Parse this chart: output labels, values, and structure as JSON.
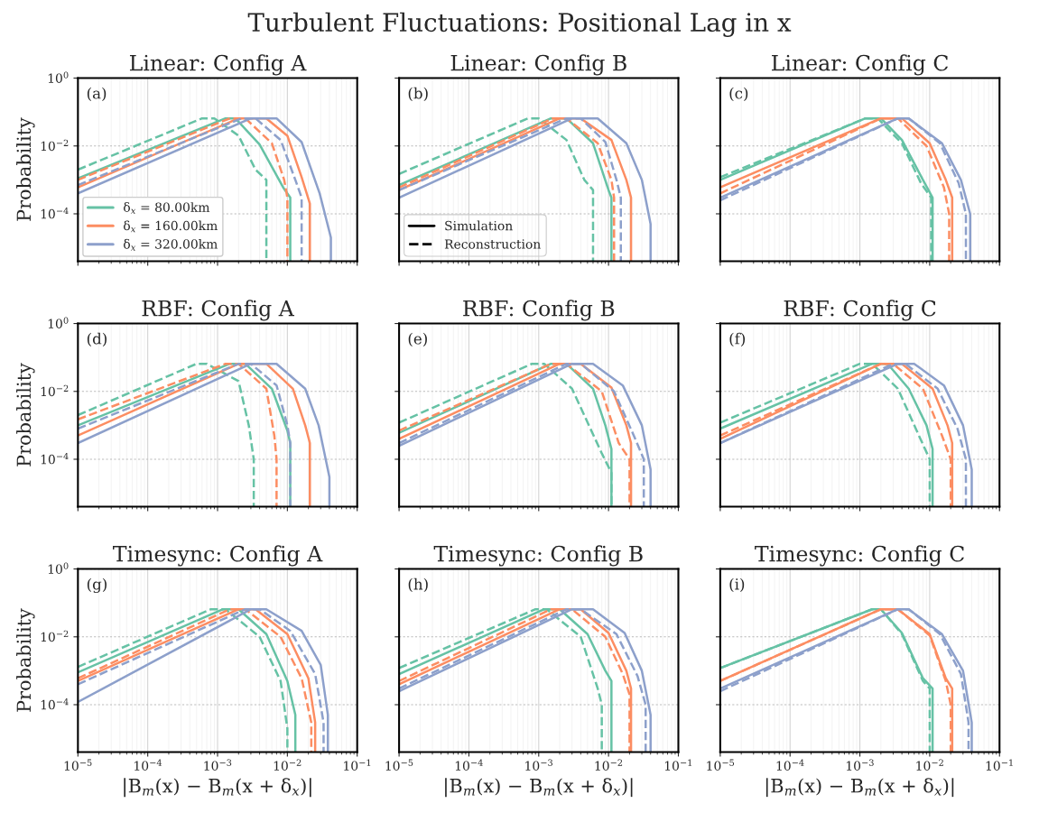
{
  "chart_data": [
    {
      "type": "other",
      "title": "Turbulent Fluctuations: Positional Lag in x"
    },
    {
      "type": "line",
      "title": "Linear: Config A",
      "ylabel": "Probability",
      "annotations": [
        "(a)"
      ],
      "log": "xy",
      "grid": true,
      "legend": "bottom left",
      "tick_labels": "y",
      "xlim": [
        1e-05,
        0.1
      ],
      "ylim": [
        4e-06,
        1
      ],
      "xticks": [
        1e-05,
        0.0001,
        0.001,
        0.01,
        0.1
      ],
      "yticks": [
        {
          "value": 0.0001,
          "label": "10$^{−4}$"
        },
        {
          "value": 0.01,
          "label": "10$^{−2}$"
        },
        {
          "value": 1,
          "label": "10$^{0}$"
        }
      ],
      "series": [
        {
          "name": "δ$_{x}$ = 80.00km",
          "color": "#66c2a5",
          "line_style": "solid",
          "x": [
            1e-05,
            0.0013,
            0.0018,
            0.004,
            0.0087,
            0.011,
            0.011
          ],
          "values": [
            0.0011,
            0.065,
            0.065,
            0.011,
            0.0006,
            0.0003,
            4e-06
          ]
        },
        {
          "color": "#66c2a5",
          "line_style": "dashed",
          "x": [
            1e-05,
            0.0006,
            0.0009,
            0.002,
            0.0035,
            0.005,
            0.005
          ],
          "values": [
            0.002,
            0.065,
            0.065,
            0.02,
            0.002,
            0.001,
            4e-06
          ]
        },
        {
          "name": "δ$_{x}$ = 160.00km",
          "color": "#fc8d62",
          "line_style": "solid",
          "x": [
            1e-05,
            0.002,
            0.005,
            0.01,
            0.016,
            0.021,
            0.021
          ],
          "values": [
            0.0006,
            0.065,
            0.065,
            0.02,
            0.0012,
            0.0002,
            4e-06
          ]
        },
        {
          "color": "#fc8d62",
          "line_style": "dashed",
          "x": [
            1e-05,
            0.0015,
            0.0025,
            0.006,
            0.009,
            0.01,
            0.01
          ],
          "values": [
            0.001,
            0.065,
            0.065,
            0.012,
            0.001,
            0.0003,
            4e-06
          ]
        },
        {
          "name": "δ$_{x}$ = 320.00km",
          "color": "#8da0cb",
          "line_style": "solid",
          "x": [
            1e-05,
            0.003,
            0.007,
            0.016,
            0.029,
            0.042,
            0.042
          ],
          "values": [
            0.0004,
            0.065,
            0.065,
            0.013,
            0.0004,
            2e-05,
            4e-06
          ]
        },
        {
          "color": "#8da0cb",
          "line_style": "dashed",
          "x": [
            1e-05,
            0.0022,
            0.0035,
            0.008,
            0.013,
            0.016,
            0.016
          ],
          "values": [
            0.0007,
            0.065,
            0.065,
            0.015,
            0.001,
            0.0003,
            4e-06
          ]
        }
      ]
    },
    {
      "type": "line",
      "title": "Linear: Config B",
      "annotations": [
        "(b)",
        "Simulation",
        "Reconstruction"
      ],
      "log": "xy",
      "grid": true,
      "legend": "bottom left",
      "tick_labels": false,
      "xlim": [
        1e-05,
        0.1
      ],
      "ylim": [
        4e-06,
        1
      ],
      "xticks": [
        1e-05,
        0.0001,
        0.001,
        0.01,
        0.1
      ],
      "yticks": [
        0.0001,
        0.01,
        1
      ],
      "series": [
        {
          "color": "#66c2a5",
          "line_style": "solid",
          "x": [
            1e-05,
            0.0015,
            0.0025,
            0.006,
            0.01,
            0.011,
            0.011
          ],
          "values": [
            0.0007,
            0.065,
            0.065,
            0.012,
            0.0005,
            0.0003,
            4e-06
          ]
        },
        {
          "color": "#66c2a5",
          "line_style": "dashed",
          "x": [
            1e-05,
            0.0007,
            0.001,
            0.0025,
            0.0045,
            0.006,
            0.006
          ],
          "values": [
            0.0015,
            0.065,
            0.065,
            0.015,
            0.001,
            0.0005,
            4e-06
          ]
        },
        {
          "color": "#fc8d62",
          "line_style": "solid",
          "x": [
            1e-05,
            0.002,
            0.004,
            0.011,
            0.018,
            0.021,
            0.021
          ],
          "values": [
            0.0005,
            0.065,
            0.065,
            0.015,
            0.001,
            0.0003,
            4e-06
          ]
        },
        {
          "color": "#fc8d62",
          "line_style": "dashed",
          "x": [
            1e-05,
            0.0016,
            0.0025,
            0.007,
            0.011,
            0.012,
            0.012
          ],
          "values": [
            0.0006,
            0.065,
            0.065,
            0.012,
            0.001,
            0.0003,
            4e-06
          ]
        },
        {
          "color": "#8da0cb",
          "line_style": "solid",
          "x": [
            1e-05,
            0.003,
            0.007,
            0.018,
            0.03,
            0.04,
            0.04
          ],
          "values": [
            0.0003,
            0.065,
            0.065,
            0.012,
            0.001,
            5e-05,
            4e-06
          ]
        },
        {
          "color": "#8da0cb",
          "line_style": "dashed",
          "x": [
            1e-05,
            0.0025,
            0.004,
            0.009,
            0.013,
            0.015,
            0.015
          ],
          "values": [
            0.0005,
            0.065,
            0.065,
            0.013,
            0.001,
            0.0003,
            4e-06
          ]
        }
      ]
    },
    {
      "type": "line",
      "title": "Linear: Config C",
      "annotations": [
        "(c)"
      ],
      "log": "xy",
      "grid": true,
      "tick_labels": false,
      "xlim": [
        1e-05,
        0.1
      ],
      "ylim": [
        4e-06,
        1
      ],
      "xticks": [
        1e-05,
        0.0001,
        0.001,
        0.01,
        0.1
      ],
      "yticks": [
        0.0001,
        0.01,
        1
      ],
      "series": [
        {
          "color": "#66c2a5",
          "line_style": "solid",
          "x": [
            1e-05,
            0.0012,
            0.002,
            0.004,
            0.008,
            0.011,
            0.011
          ],
          "values": [
            0.001,
            0.065,
            0.065,
            0.015,
            0.001,
            0.0003,
            4e-06
          ]
        },
        {
          "color": "#66c2a5",
          "line_style": "dashed",
          "x": [
            1e-05,
            0.0012,
            0.0018,
            0.004,
            0.0075,
            0.0105,
            0.0105
          ],
          "values": [
            0.0012,
            0.065,
            0.065,
            0.012,
            0.0008,
            0.0003,
            4e-06
          ]
        },
        {
          "color": "#fc8d62",
          "line_style": "solid",
          "x": [
            1e-05,
            0.002,
            0.004,
            0.01,
            0.017,
            0.021,
            0.021
          ],
          "values": [
            0.0006,
            0.065,
            0.065,
            0.012,
            0.001,
            0.0003,
            4e-06
          ]
        },
        {
          "color": "#fc8d62",
          "line_style": "dashed",
          "x": [
            1e-05,
            0.002,
            0.0035,
            0.009,
            0.016,
            0.019,
            0.019
          ],
          "values": [
            0.0004,
            0.065,
            0.065,
            0.01,
            0.0006,
            0.0001,
            4e-06
          ]
        },
        {
          "color": "#8da0cb",
          "line_style": "solid",
          "x": [
            1e-05,
            0.0035,
            0.005,
            0.015,
            0.028,
            0.038,
            0.038
          ],
          "values": [
            0.0003,
            0.065,
            0.065,
            0.012,
            0.001,
            0.0001,
            4e-06
          ]
        },
        {
          "color": "#8da0cb",
          "line_style": "dashed",
          "x": [
            1e-05,
            0.0035,
            0.005,
            0.014,
            0.026,
            0.033,
            0.033
          ],
          "values": [
            0.00025,
            0.065,
            0.065,
            0.012,
            0.0008,
            0.0001,
            4e-06
          ]
        }
      ]
    },
    {
      "type": "line",
      "title": "RBF: Config A",
      "ylabel": "Probability",
      "annotations": [
        "(d)"
      ],
      "log": "xy",
      "grid": true,
      "tick_labels": "y",
      "xlim": [
        1e-05,
        0.1
      ],
      "ylim": [
        4e-06,
        1
      ],
      "xticks": [
        1e-05,
        0.0001,
        0.001,
        0.01,
        0.1
      ],
      "yticks": [
        {
          "value": 0.0001,
          "label": "10$^{−4}$"
        },
        {
          "value": 0.01,
          "label": "10$^{−2}$"
        },
        {
          "value": 1,
          "label": "10$^{0}$"
        }
      ],
      "series": [
        {
          "color": "#66c2a5",
          "line_style": "solid",
          "x": [
            1e-05,
            0.0015,
            0.0025,
            0.006,
            0.01,
            0.011,
            0.011
          ],
          "values": [
            0.001,
            0.065,
            0.065,
            0.012,
            0.0007,
            0.0003,
            4e-06
          ]
        },
        {
          "color": "#66c2a5",
          "line_style": "dashed",
          "x": [
            1e-05,
            0.0005,
            0.0007,
            0.002,
            0.0028,
            0.0033,
            0.0033
          ],
          "values": [
            0.002,
            0.065,
            0.065,
            0.02,
            0.001,
            0.0001,
            4e-06
          ]
        },
        {
          "color": "#fc8d62",
          "line_style": "solid",
          "x": [
            1e-05,
            0.002,
            0.005,
            0.012,
            0.018,
            0.021,
            0.021
          ],
          "values": [
            0.0005,
            0.065,
            0.065,
            0.012,
            0.001,
            0.0003,
            4e-06
          ]
        },
        {
          "color": "#fc8d62",
          "line_style": "dashed",
          "x": [
            1e-05,
            0.0013,
            0.002,
            0.005,
            0.0065,
            0.007,
            0.007
          ],
          "values": [
            0.0015,
            0.065,
            0.065,
            0.012,
            0.0005,
            0.0001,
            4e-06
          ]
        },
        {
          "color": "#8da0cb",
          "line_style": "solid",
          "x": [
            1e-05,
            0.003,
            0.007,
            0.018,
            0.028,
            0.04,
            0.04
          ],
          "values": [
            0.0003,
            0.065,
            0.065,
            0.012,
            0.001,
            3e-05,
            4e-06
          ]
        },
        {
          "color": "#8da0cb",
          "line_style": "dashed",
          "x": [
            1e-05,
            0.002,
            0.003,
            0.007,
            0.01,
            0.011,
            0.011
          ],
          "values": [
            0.0008,
            0.065,
            0.065,
            0.015,
            0.001,
            0.0003,
            4e-06
          ]
        }
      ]
    },
    {
      "type": "line",
      "title": "RBF: Config B",
      "annotations": [
        "(e)"
      ],
      "log": "xy",
      "grid": true,
      "tick_labels": false,
      "xlim": [
        1e-05,
        0.1
      ],
      "ylim": [
        4e-06,
        1
      ],
      "xticks": [
        1e-05,
        0.0001,
        0.001,
        0.01,
        0.1
      ],
      "yticks": [
        0.0001,
        0.01,
        1
      ],
      "series": [
        {
          "color": "#66c2a5",
          "line_style": "solid",
          "x": [
            1e-05,
            0.0015,
            0.0025,
            0.006,
            0.009,
            0.011,
            0.011
          ],
          "values": [
            0.0006,
            0.065,
            0.065,
            0.012,
            0.001,
            0.0002,
            4e-06
          ]
        },
        {
          "color": "#66c2a5",
          "line_style": "dashed",
          "x": [
            1e-05,
            0.0008,
            0.0012,
            0.003,
            0.008,
            0.011,
            0.011
          ],
          "values": [
            0.0012,
            0.065,
            0.065,
            0.012,
            0.00015,
            4e-05,
            4e-06
          ]
        },
        {
          "color": "#fc8d62",
          "line_style": "solid",
          "x": [
            1e-05,
            0.002,
            0.004,
            0.011,
            0.018,
            0.021,
            0.021
          ],
          "values": [
            0.0004,
            0.065,
            0.065,
            0.013,
            0.001,
            0.0003,
            4e-06
          ]
        },
        {
          "color": "#fc8d62",
          "line_style": "dashed",
          "x": [
            1e-05,
            0.0015,
            0.0025,
            0.008,
            0.014,
            0.02,
            0.02
          ],
          "values": [
            0.0007,
            0.065,
            0.065,
            0.01,
            0.0003,
            0.0001,
            4e-06
          ]
        },
        {
          "color": "#8da0cb",
          "line_style": "solid",
          "x": [
            1e-05,
            0.003,
            0.006,
            0.016,
            0.03,
            0.04,
            0.04
          ],
          "values": [
            0.00025,
            0.065,
            0.065,
            0.015,
            0.001,
            5e-05,
            4e-06
          ]
        },
        {
          "color": "#8da0cb",
          "line_style": "dashed",
          "x": [
            1e-05,
            0.0025,
            0.004,
            0.012,
            0.023,
            0.032,
            0.032
          ],
          "values": [
            0.0003,
            0.065,
            0.065,
            0.01,
            0.0005,
            0.0001,
            4e-06
          ]
        }
      ]
    },
    {
      "type": "line",
      "title": "RBF: Config C",
      "annotations": [
        "(f)"
      ],
      "log": "xy",
      "grid": true,
      "tick_labels": false,
      "xlim": [
        1e-05,
        0.1
      ],
      "ylim": [
        4e-06,
        1
      ],
      "xticks": [
        1e-05,
        0.0001,
        0.001,
        0.01,
        0.1
      ],
      "yticks": [
        0.0001,
        0.01,
        1
      ],
      "series": [
        {
          "color": "#66c2a5",
          "line_style": "solid",
          "x": [
            1e-05,
            0.0015,
            0.0025,
            0.005,
            0.009,
            0.011,
            0.011
          ],
          "values": [
            0.0008,
            0.065,
            0.065,
            0.012,
            0.001,
            0.0002,
            4e-06
          ]
        },
        {
          "color": "#66c2a5",
          "line_style": "dashed",
          "x": [
            1e-05,
            0.001,
            0.0015,
            0.0035,
            0.007,
            0.01,
            0.01
          ],
          "values": [
            0.0012,
            0.065,
            0.065,
            0.012,
            0.0005,
            0.0001,
            4e-06
          ]
        },
        {
          "color": "#fc8d62",
          "line_style": "solid",
          "x": [
            1e-05,
            0.002,
            0.004,
            0.011,
            0.018,
            0.021,
            0.021
          ],
          "values": [
            0.0004,
            0.065,
            0.065,
            0.012,
            0.001,
            0.0003,
            4e-06
          ]
        },
        {
          "color": "#fc8d62",
          "line_style": "dashed",
          "x": [
            1e-05,
            0.002,
            0.003,
            0.008,
            0.015,
            0.02,
            0.02
          ],
          "values": [
            0.0005,
            0.065,
            0.065,
            0.012,
            0.0005,
            0.0001,
            4e-06
          ]
        },
        {
          "color": "#8da0cb",
          "line_style": "solid",
          "x": [
            1e-05,
            0.0035,
            0.006,
            0.016,
            0.03,
            0.04,
            0.04
          ],
          "values": [
            0.0003,
            0.065,
            0.065,
            0.015,
            0.001,
            5e-05,
            4e-06
          ]
        },
        {
          "color": "#8da0cb",
          "line_style": "dashed",
          "x": [
            1e-05,
            0.003,
            0.0045,
            0.013,
            0.025,
            0.033,
            0.033
          ],
          "values": [
            0.0003,
            0.065,
            0.065,
            0.012,
            0.0008,
            0.0001,
            4e-06
          ]
        }
      ]
    },
    {
      "type": "line",
      "title": "Timesync: Config A",
      "ylabel": "Probability",
      "xlabel": "|B$_{m}$(x) − B$_{m}$(x + δ$_{x}$)|",
      "annotations": [
        "(g)"
      ],
      "log": "xy",
      "grid": true,
      "xlim": [
        1e-05,
        0.1
      ],
      "ylim": [
        4e-06,
        1
      ],
      "xticks": [
        {
          "value": 1e-05,
          "label": "10$^{−5}$"
        },
        {
          "value": 0.0001,
          "label": "10$^{−4}$"
        },
        {
          "value": 0.001,
          "label": "10$^{−3}$"
        },
        {
          "value": 0.01,
          "label": "10$^{−2}$"
        },
        {
          "value": 0.1,
          "label": "10$^{−1}$"
        }
      ],
      "yticks": [
        {
          "value": 0.0001,
          "label": "10$^{−4}$"
        },
        {
          "value": 0.01,
          "label": "10$^{−2}$"
        },
        {
          "value": 1,
          "label": "10$^{0}$"
        }
      ],
      "series": [
        {
          "color": "#66c2a5",
          "line_style": "solid",
          "x": [
            1e-05,
            0.0012,
            0.002,
            0.005,
            0.01,
            0.013,
            0.013
          ],
          "values": [
            0.0009,
            0.065,
            0.065,
            0.012,
            0.0005,
            5e-05,
            4e-06
          ]
        },
        {
          "color": "#66c2a5",
          "line_style": "dashed",
          "x": [
            1e-05,
            0.0008,
            0.0013,
            0.004,
            0.008,
            0.01,
            0.01
          ],
          "values": [
            0.0013,
            0.065,
            0.065,
            0.01,
            0.0005,
            2e-05,
            4e-06
          ]
        },
        {
          "color": "#fc8d62",
          "line_style": "solid",
          "x": [
            1e-05,
            0.002,
            0.0035,
            0.01,
            0.02,
            0.025,
            0.025
          ],
          "values": [
            0.0005,
            0.065,
            0.065,
            0.012,
            0.0006,
            3e-05,
            4e-06
          ]
        },
        {
          "color": "#fc8d62",
          "line_style": "dashed",
          "x": [
            1e-05,
            0.0015,
            0.0025,
            0.008,
            0.016,
            0.022,
            0.022
          ],
          "values": [
            0.0006,
            0.065,
            0.065,
            0.01,
            0.0006,
            3e-05,
            4e-06
          ]
        },
        {
          "color": "#8da0cb",
          "line_style": "solid",
          "x": [
            1e-05,
            0.003,
            0.005,
            0.016,
            0.03,
            0.038,
            0.038
          ],
          "values": [
            0.00012,
            0.065,
            0.065,
            0.015,
            0.0015,
            5e-05,
            4e-06
          ]
        },
        {
          "color": "#8da0cb",
          "line_style": "dashed",
          "x": [
            1e-05,
            0.0025,
            0.004,
            0.011,
            0.025,
            0.033,
            0.033
          ],
          "values": [
            0.0004,
            0.065,
            0.065,
            0.015,
            0.0008,
            3e-05,
            4e-06
          ]
        }
      ]
    },
    {
      "type": "line",
      "title": "Timesync: Config B",
      "xlabel": "|B$_{m}$(x) − B$_{m}$(x + δ$_{x}$)|",
      "annotations": [
        "(h)"
      ],
      "log": "xy",
      "grid": true,
      "tick_labels": "x",
      "xlim": [
        1e-05,
        0.1
      ],
      "ylim": [
        4e-06,
        1
      ],
      "xticks": [
        {
          "value": 1e-05,
          "label": "10$^{−5}$"
        },
        {
          "value": 0.0001,
          "label": "10$^{−4}$"
        },
        {
          "value": 0.001,
          "label": "10$^{−3}$"
        },
        {
          "value": 0.01,
          "label": "10$^{−2}$"
        },
        {
          "value": 0.1,
          "label": "10$^{−1}$"
        }
      ],
      "yticks": [
        0.0001,
        0.01,
        1
      ],
      "series": [
        {
          "color": "#66c2a5",
          "line_style": "solid",
          "x": [
            1e-05,
            0.0012,
            0.002,
            0.005,
            0.009,
            0.011,
            0.011
          ],
          "values": [
            0.0008,
            0.065,
            0.065,
            0.012,
            0.001,
            0.0005,
            4e-06
          ]
        },
        {
          "color": "#66c2a5",
          "line_style": "dashed",
          "x": [
            1e-05,
            0.0009,
            0.0013,
            0.004,
            0.007,
            0.008,
            0.008
          ],
          "values": [
            0.0012,
            0.065,
            0.065,
            0.01,
            0.0003,
            0.0001,
            4e-06
          ]
        },
        {
          "color": "#fc8d62",
          "line_style": "solid",
          "x": [
            1e-05,
            0.002,
            0.004,
            0.01,
            0.018,
            0.021,
            0.021
          ],
          "values": [
            0.0004,
            0.065,
            0.065,
            0.013,
            0.001,
            0.0003,
            4e-06
          ]
        },
        {
          "color": "#fc8d62",
          "line_style": "dashed",
          "x": [
            1e-05,
            0.0015,
            0.003,
            0.009,
            0.016,
            0.02,
            0.02
          ],
          "values": [
            0.0005,
            0.065,
            0.065,
            0.01,
            0.0008,
            0.0002,
            4e-06
          ]
        },
        {
          "color": "#8da0cb",
          "line_style": "solid",
          "x": [
            1e-05,
            0.003,
            0.006,
            0.017,
            0.03,
            0.04,
            0.04
          ],
          "values": [
            0.00025,
            0.065,
            0.065,
            0.013,
            0.001,
            5e-05,
            4e-06
          ]
        },
        {
          "color": "#8da0cb",
          "line_style": "dashed",
          "x": [
            1e-05,
            0.0025,
            0.004,
            0.013,
            0.026,
            0.034,
            0.034
          ],
          "values": [
            0.0003,
            0.065,
            0.065,
            0.012,
            0.0007,
            0.0001,
            4e-06
          ]
        }
      ]
    },
    {
      "type": "line",
      "title": "Timesync: Config C",
      "xlabel": "|B$_{m}$(x) − B$_{m}$(x + δ$_{x}$)|",
      "annotations": [
        "(i)"
      ],
      "log": "xy",
      "grid": true,
      "tick_labels": "x",
      "xlim": [
        1e-05,
        0.1
      ],
      "ylim": [
        4e-06,
        1
      ],
      "xticks": [
        {
          "value": 1e-05,
          "label": "10$^{−5}$"
        },
        {
          "value": 0.0001,
          "label": "10$^{−4}$"
        },
        {
          "value": 0.001,
          "label": "10$^{−3}$"
        },
        {
          "value": 0.01,
          "label": "10$^{−2}$"
        },
        {
          "value": 0.1,
          "label": "10$^{−1}$"
        }
      ],
      "yticks": [
        0.0001,
        0.01,
        1
      ],
      "series": [
        {
          "color": "#66c2a5",
          "line_style": "solid",
          "x": [
            1e-05,
            0.0015,
            0.002,
            0.004,
            0.008,
            0.011,
            0.011
          ],
          "values": [
            0.0012,
            0.065,
            0.065,
            0.013,
            0.0006,
            0.0003,
            4e-06
          ]
        },
        {
          "color": "#66c2a5",
          "line_style": "dashed",
          "x": [
            1e-05,
            0.0015,
            0.002,
            0.004,
            0.008,
            0.01,
            0.01
          ],
          "values": [
            0.0012,
            0.065,
            0.065,
            0.012,
            0.0005,
            0.0003,
            4e-06
          ]
        },
        {
          "color": "#fc8d62",
          "line_style": "solid",
          "x": [
            1e-05,
            0.002,
            0.0035,
            0.01,
            0.017,
            0.021,
            0.021
          ],
          "values": [
            0.0005,
            0.065,
            0.065,
            0.012,
            0.0006,
            0.0003,
            4e-06
          ]
        },
        {
          "color": "#fc8d62",
          "line_style": "dashed",
          "x": [
            1e-05,
            0.002,
            0.0035,
            0.01,
            0.017,
            0.02,
            0.02
          ],
          "values": [
            0.0005,
            0.065,
            0.065,
            0.011,
            0.0005,
            0.0001,
            4e-06
          ]
        },
        {
          "color": "#8da0cb",
          "line_style": "solid",
          "x": [
            1e-05,
            0.0035,
            0.005,
            0.015,
            0.03,
            0.04,
            0.04
          ],
          "values": [
            0.0003,
            0.065,
            0.065,
            0.012,
            0.001,
            3e-05,
            4e-06
          ]
        },
        {
          "color": "#8da0cb",
          "line_style": "dashed",
          "x": [
            1e-05,
            0.0035,
            0.005,
            0.014,
            0.028,
            0.036,
            0.036
          ],
          "values": [
            0.00025,
            0.065,
            0.065,
            0.012,
            0.0008,
            3e-05,
            4e-06
          ]
        }
      ]
    }
  ]
}
